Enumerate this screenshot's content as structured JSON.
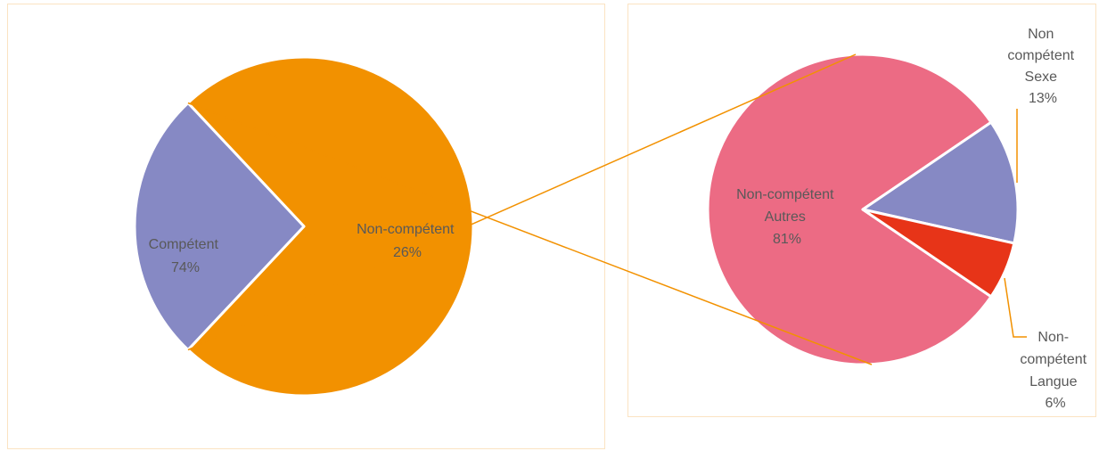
{
  "colors": {
    "frame_border": "#fbe3c2",
    "connector": "#f29100",
    "leader": "#f29100",
    "slice_edge": "#ffffff"
  },
  "chart_data": [
    {
      "type": "pie",
      "slices": [
        {
          "label": "Compétent",
          "value": 74,
          "value_label": "74%",
          "color": "#f29100"
        },
        {
          "label": "Non-compétent",
          "value": 26,
          "value_label": "26%",
          "color": "#8689c4"
        }
      ]
    },
    {
      "type": "pie",
      "slices": [
        {
          "label": "Non-compétent Autres",
          "label_lines": [
            "Non-compétent",
            "Autres"
          ],
          "value": 81,
          "value_label": "81%",
          "color": "#ec6b84"
        },
        {
          "label": "Non compétent Sexe",
          "label_lines": [
            "Non",
            "compétent",
            "Sexe"
          ],
          "value": 13,
          "value_label": "13%",
          "color": "#8689c4"
        },
        {
          "label": "Non-compétent Langue",
          "label_lines": [
            "Non-",
            "compétent",
            "Langue"
          ],
          "value": 6,
          "value_label": "6%",
          "color": "#e73418"
        }
      ]
    }
  ]
}
